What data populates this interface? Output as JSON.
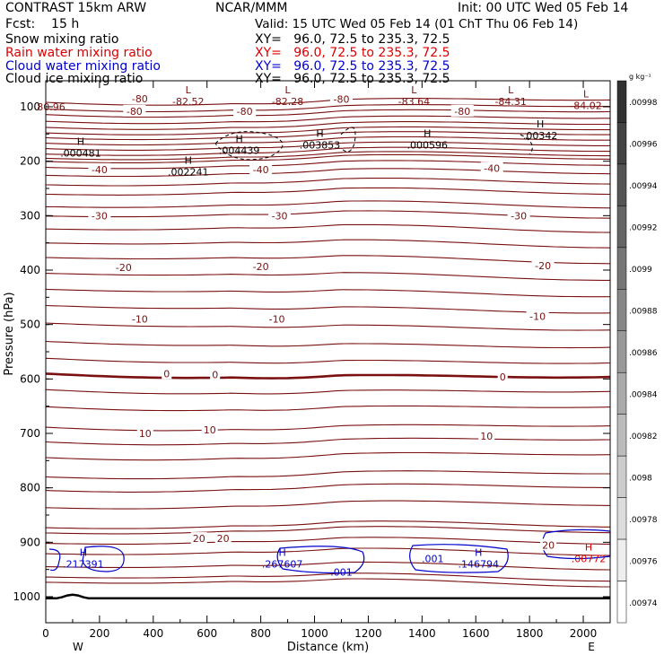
{
  "header": {
    "title_left": "CONTRAST 15km ARW",
    "center": "NCAR/MMM",
    "init": "Init: 00 UTC Wed 05 Feb 14",
    "fcst": "Fcst:    15 h",
    "valid": "Valid: 15 UTC Wed 05 Feb 14 (01 ChT Thu 06 Feb 14)"
  },
  "legend": [
    {
      "label": "Snow mixing ratio",
      "xy": "XY=   96.0, 72.5 to 235.3, 72.5",
      "color": "#000000"
    },
    {
      "label": "Rain water mixing ratio",
      "xy": "XY=   96.0, 72.5 to 235.3, 72.5",
      "color": "#dd0000"
    },
    {
      "label": "Cloud water mixing ratio",
      "xy": "XY=   96.0, 72.5 to 235.3, 72.5",
      "color": "#0000cc"
    },
    {
      "label": "Cloud ice mixing ratio",
      "xy": "XY=   96.0, 72.5 to 235.3, 72.5",
      "color": "#000000"
    }
  ],
  "colors": {
    "temperature": "#7a1010",
    "zero_isotherm": "#7a1010",
    "cloud_water": "#0000cc",
    "ice": "#000000"
  },
  "chart_data": {
    "type": "cross-section",
    "xlabel": "Distance (km)",
    "ylabel": "Pressure (hPa)",
    "xlim": [
      0,
      2100
    ],
    "ylim": [
      1050,
      50
    ],
    "x_ticks": [
      "0",
      "200",
      "400",
      "600",
      "800",
      "1000",
      "1200",
      "1400",
      "1600",
      "1800",
      "2000"
    ],
    "y_ticks": [
      "100",
      "200",
      "300",
      "400",
      "500",
      "600",
      "700",
      "800",
      "900",
      "1000"
    ],
    "x_end_labels": {
      "left": "W",
      "right": "E"
    },
    "isotherm_labels": [
      {
        "text": "-80",
        "x": 350,
        "p": 85
      },
      {
        "text": "-80",
        "x": 1100,
        "p": 86
      },
      {
        "text": "-80",
        "x": 330,
        "p": 108
      },
      {
        "text": "-80",
        "x": 740,
        "p": 108
      },
      {
        "text": "-80",
        "x": 1550,
        "p": 108
      },
      {
        "text": "-40",
        "x": 200,
        "p": 215
      },
      {
        "text": "-40",
        "x": 800,
        "p": 215
      },
      {
        "text": "-40",
        "x": 1660,
        "p": 213
      },
      {
        "text": "-30",
        "x": 200,
        "p": 300
      },
      {
        "text": "-30",
        "x": 870,
        "p": 300
      },
      {
        "text": "-30",
        "x": 1760,
        "p": 300
      },
      {
        "text": "-20",
        "x": 290,
        "p": 395
      },
      {
        "text": "-20",
        "x": 800,
        "p": 393
      },
      {
        "text": "-20",
        "x": 1850,
        "p": 392
      },
      {
        "text": "-10",
        "x": 350,
        "p": 490
      },
      {
        "text": "-10",
        "x": 860,
        "p": 490
      },
      {
        "text": "-10",
        "x": 1830,
        "p": 485
      },
      {
        "text": "0",
        "x": 450,
        "p": 590
      },
      {
        "text": "0",
        "x": 630,
        "p": 592
      },
      {
        "text": "0",
        "x": 1700,
        "p": 596
      },
      {
        "text": "10",
        "x": 370,
        "p": 700
      },
      {
        "text": "10",
        "x": 610,
        "p": 693
      },
      {
        "text": "10",
        "x": 1640,
        "p": 705
      },
      {
        "text": "20",
        "x": 570,
        "p": 893
      },
      {
        "text": "20",
        "x": 660,
        "p": 893
      },
      {
        "text": "20",
        "x": 1870,
        "p": 905
      }
    ],
    "extrema": [
      {
        "kind": "L",
        "value": "-82.52",
        "x": 530,
        "p": 80,
        "color": "#7a1010"
      },
      {
        "kind": "L",
        "value": "-82.28",
        "x": 900,
        "p": 80,
        "color": "#7a1010"
      },
      {
        "kind": "L",
        "value": "-83.64",
        "x": 1370,
        "p": 80,
        "color": "#7a1010"
      },
      {
        "kind": "L",
        "value": "-84.31",
        "x": 1730,
        "p": 80,
        "color": "#7a1010"
      },
      {
        "kind": "",
        "value": "80.96",
        "x": 20,
        "p": 90,
        "color": "#7a1010"
      },
      {
        "kind": "L",
        "value": "-84.02",
        "x": 2010,
        "p": 88,
        "color": "#7a1010"
      },
      {
        "kind": "H",
        "value": ".000481",
        "x": 130,
        "p": 175,
        "color": "#000000"
      },
      {
        "kind": "H",
        "value": ".004439",
        "x": 720,
        "p": 170,
        "color": "#000000"
      },
      {
        "kind": "H",
        "value": ".003853",
        "x": 1020,
        "p": 160,
        "color": "#000000"
      },
      {
        "kind": "H",
        "value": ".000596",
        "x": 1420,
        "p": 160,
        "color": "#000000"
      },
      {
        "kind": "H",
        "value": ".00342",
        "x": 1840,
        "p": 143,
        "color": "#000000"
      },
      {
        "kind": "H",
        "value": ".002241",
        "x": 530,
        "p": 210,
        "color": "#000000"
      },
      {
        "kind": "H",
        "value": ".217391",
        "x": 140,
        "p": 930,
        "color": "#0000cc"
      },
      {
        "kind": "H",
        "value": ".267607",
        "x": 880,
        "p": 930,
        "color": "#0000cc"
      },
      {
        "kind": "",
        "value": ".001",
        "x": 1100,
        "p": 945,
        "color": "#0000cc"
      },
      {
        "kind": "",
        "value": ".001",
        "x": 1440,
        "p": 920,
        "color": "#0000cc"
      },
      {
        "kind": "H",
        "value": ".146794",
        "x": 1610,
        "p": 930,
        "color": "#0000cc"
      },
      {
        "kind": "H",
        "value": ".00772",
        "x": 2020,
        "p": 920,
        "color": "#dd0000"
      }
    ],
    "colorbar": {
      "unit": "g kg⁻¹",
      "ticks": [
        ".00998",
        ".00996",
        ".00994",
        ".00992",
        ".0099",
        ".00988",
        ".00986",
        ".00984",
        ".00982",
        ".0098",
        ".00978",
        ".00976",
        ".00974"
      ]
    }
  }
}
